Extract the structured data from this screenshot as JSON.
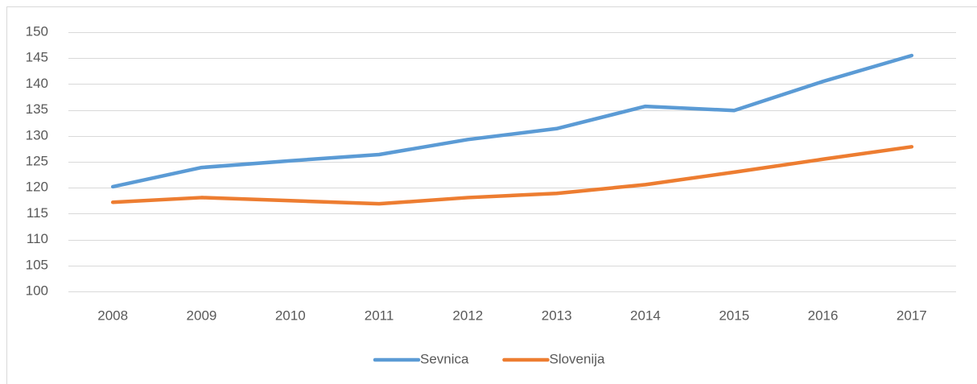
{
  "chart_data": {
    "type": "line",
    "categories": [
      "2008",
      "2009",
      "2010",
      "2011",
      "2012",
      "2013",
      "2014",
      "2015",
      "2016",
      "2017"
    ],
    "series": [
      {
        "name": "Sevnica",
        "color": "#5b9bd5",
        "values": [
          120.2,
          123.9,
          125.2,
          126.4,
          129.3,
          131.4,
          135.7,
          134.9,
          140.5,
          145.5
        ]
      },
      {
        "name": "Slovenija",
        "color": "#ed7d31",
        "values": [
          117.2,
          118.1,
          117.5,
          116.9,
          118.1,
          118.9,
          120.6,
          123.0,
          125.5,
          127.9
        ]
      }
    ],
    "ylim": [
      100,
      150
    ],
    "yticks": [
      100,
      105,
      110,
      115,
      120,
      125,
      130,
      135,
      140,
      145,
      150
    ],
    "grid": true,
    "legend": "bottom"
  }
}
